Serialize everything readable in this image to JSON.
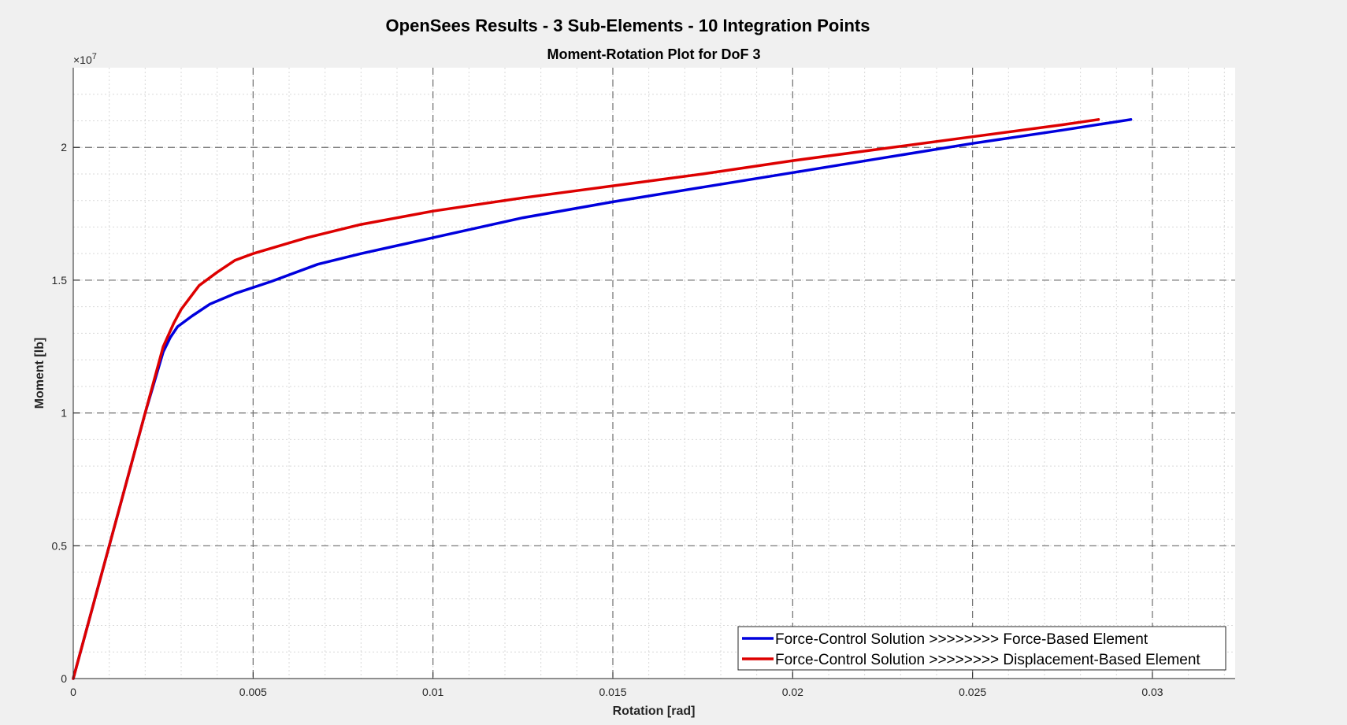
{
  "figure": {
    "title": "OpenSees Results - 3 Sub-Elements - 10 Integration Points"
  },
  "chart_data": {
    "type": "line",
    "title": "Moment-Rotation Plot for DoF 3",
    "xlabel": "Rotation [rad]",
    "ylabel": "Moment [lb]",
    "y_exponent_label": "×10",
    "y_exponent_power": "7",
    "xlim": [
      0,
      0.0323
    ],
    "ylim": [
      0,
      23000000
    ],
    "x_ticks": [
      0,
      0.005,
      0.01,
      0.015,
      0.02,
      0.025,
      0.03
    ],
    "x_tick_labels": [
      "0",
      "0.005",
      "0.01",
      "0.015",
      "0.02",
      "0.025",
      "0.03"
    ],
    "y_ticks": [
      0,
      5000000,
      10000000,
      15000000,
      20000000
    ],
    "y_tick_labels": [
      "0",
      "0.5",
      "1",
      "1.5",
      "2"
    ],
    "x_minor_step": 0.001,
    "y_minor_step": 1000000,
    "grid": true,
    "minor_grid": true,
    "legend_position": "bottom-right",
    "series": [
      {
        "name": "Force-Control Solution >>>>>>>> Force-Based Element",
        "color": "#0000dd",
        "x": [
          0,
          0.001,
          0.002,
          0.0025,
          0.0027,
          0.0029,
          0.0033,
          0.0038,
          0.0045,
          0.0055,
          0.0068,
          0.008,
          0.01,
          0.0125,
          0.015,
          0.0175,
          0.02,
          0.0225,
          0.025,
          0.0275,
          0.0294
        ],
        "y": [
          0,
          5000000,
          10000000,
          12300000,
          12850000,
          13250000,
          13650000,
          14100000,
          14500000,
          14950000,
          15600000,
          16000000,
          16600000,
          17350000,
          17950000,
          18500000,
          19050000,
          19600000,
          20150000,
          20650000,
          21050000
        ]
      },
      {
        "name": "Force-Control Solution >>>>>>>> Displacement-Based Element",
        "color": "#dd0000",
        "x": [
          0,
          0.001,
          0.002,
          0.0025,
          0.0028,
          0.003,
          0.0035,
          0.004,
          0.0045,
          0.005,
          0.0065,
          0.008,
          0.01,
          0.0125,
          0.015,
          0.0175,
          0.02,
          0.0225,
          0.025,
          0.0275,
          0.0285
        ],
        "y": [
          0,
          5000000,
          10000000,
          12500000,
          13400000,
          13900000,
          14800000,
          15300000,
          15750000,
          16000000,
          16600000,
          17100000,
          17600000,
          18100000,
          18550000,
          19000000,
          19500000,
          19950000,
          20400000,
          20850000,
          21050000
        ]
      }
    ]
  }
}
